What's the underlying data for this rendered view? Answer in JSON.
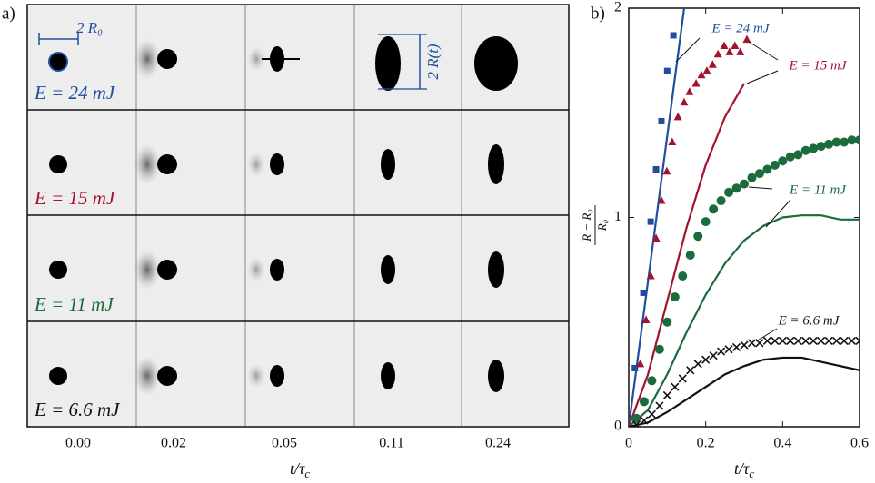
{
  "panel_a": {
    "label": "a)",
    "rows": [
      {
        "label": "E = 24 mJ",
        "color": "#1f4e9e"
      },
      {
        "label": "E = 15 mJ",
        "color": "#a3122e"
      },
      {
        "label": "E = 11 mJ",
        "color": "#1b6b3c"
      },
      {
        "label": "E = 6.6 mJ",
        "color": "#111111"
      }
    ],
    "times": [
      "0.00",
      "0.02",
      "0.05",
      "0.11",
      "0.24"
    ],
    "xlabel": {
      "base": "t/τ",
      "sub": "c"
    },
    "scale_label_initial": "2 R₀",
    "scale_label_current": "2 R(t)"
  },
  "chart_data": {
    "type": "scatter",
    "panel_label": "b)",
    "xlabel": {
      "base": "t/τ",
      "sub": "c"
    },
    "ylabel": {
      "numerator": "R − R₀",
      "denominator": "R₀"
    },
    "xlim": [
      0,
      0.6
    ],
    "ylim": [
      0,
      2
    ],
    "xticks": [
      0,
      0.2,
      0.4,
      0.6
    ],
    "yticks": [
      0,
      1,
      2
    ],
    "series": [
      {
        "name": "E = 24 mJ",
        "color": "#1f4e9e",
        "marker": "square",
        "x": [
          0.016,
          0.038,
          0.057,
          0.071,
          0.085,
          0.1,
          0.116
        ],
        "values": [
          0.28,
          0.64,
          0.98,
          1.23,
          1.46,
          1.7,
          1.87
        ],
        "model_x": [
          0,
          0.144
        ],
        "model_values": [
          0,
          2
        ]
      },
      {
        "name": "E = 15 mJ",
        "color": "#a3122e",
        "marker": "triangle",
        "x": [
          0.03,
          0.045,
          0.057,
          0.071,
          0.085,
          0.099,
          0.113,
          0.128,
          0.144,
          0.158,
          0.175,
          0.189,
          0.203,
          0.218,
          0.232,
          0.248,
          0.262,
          0.276,
          0.29,
          0.307
        ],
        "values": [
          0.3,
          0.51,
          0.72,
          0.9,
          1.08,
          1.22,
          1.36,
          1.48,
          1.55,
          1.6,
          1.64,
          1.68,
          1.7,
          1.73,
          1.78,
          1.82,
          1.79,
          1.82,
          1.79,
          1.85
        ],
        "model_x": [
          0,
          0.05,
          0.1,
          0.15,
          0.2,
          0.25,
          0.3
        ],
        "model_values": [
          0,
          0.25,
          0.6,
          0.95,
          1.25,
          1.48,
          1.64
        ]
      },
      {
        "name": "E = 11 mJ",
        "color": "#1b6b3c",
        "marker": "circle",
        "x": [
          0.02,
          0.04,
          0.06,
          0.08,
          0.1,
          0.12,
          0.14,
          0.16,
          0.18,
          0.2,
          0.22,
          0.24,
          0.26,
          0.28,
          0.3,
          0.32,
          0.34,
          0.36,
          0.38,
          0.4,
          0.42,
          0.44,
          0.46,
          0.48,
          0.5,
          0.52,
          0.54,
          0.56,
          0.58,
          0.6
        ],
        "values": [
          0.04,
          0.12,
          0.22,
          0.37,
          0.5,
          0.62,
          0.72,
          0.82,
          0.91,
          0.98,
          1.04,
          1.08,
          1.12,
          1.14,
          1.16,
          1.19,
          1.21,
          1.23,
          1.25,
          1.27,
          1.29,
          1.3,
          1.32,
          1.33,
          1.34,
          1.35,
          1.36,
          1.36,
          1.37,
          1.37
        ],
        "model_x": [
          0,
          0.05,
          0.1,
          0.15,
          0.2,
          0.25,
          0.3,
          0.35,
          0.4,
          0.45,
          0.5,
          0.55,
          0.6
        ],
        "model_values": [
          0,
          0.08,
          0.25,
          0.45,
          0.63,
          0.78,
          0.89,
          0.96,
          1,
          1.01,
          1.01,
          0.99,
          0.99
        ]
      },
      {
        "name": "E = 6.6 mJ",
        "color": "#111111",
        "marker": "cross",
        "x": [
          0.02,
          0.04,
          0.06,
          0.08,
          0.1,
          0.12,
          0.14,
          0.16,
          0.18,
          0.2,
          0.22,
          0.24,
          0.26,
          0.28,
          0.3,
          0.32,
          0.34,
          0.36,
          0.38,
          0.4,
          0.42,
          0.44,
          0.46,
          0.48,
          0.5,
          0.52,
          0.54,
          0.56,
          0.58,
          0.6
        ],
        "values": [
          0.01,
          0.03,
          0.06,
          0.1,
          0.15,
          0.19,
          0.23,
          0.27,
          0.3,
          0.32,
          0.34,
          0.36,
          0.37,
          0.38,
          0.39,
          0.4,
          0.4,
          0.41,
          0.41,
          0.41,
          0.41,
          0.41,
          0.41,
          0.41,
          0.41,
          0.41,
          0.41,
          0.41,
          0.41,
          0.41
        ],
        "model_x": [
          0,
          0.05,
          0.1,
          0.15,
          0.2,
          0.25,
          0.3,
          0.35,
          0.4,
          0.45,
          0.5,
          0.55,
          0.6
        ],
        "model_values": [
          0,
          0.02,
          0.07,
          0.13,
          0.19,
          0.25,
          0.29,
          0.32,
          0.33,
          0.33,
          0.31,
          0.29,
          0.27
        ]
      }
    ]
  }
}
